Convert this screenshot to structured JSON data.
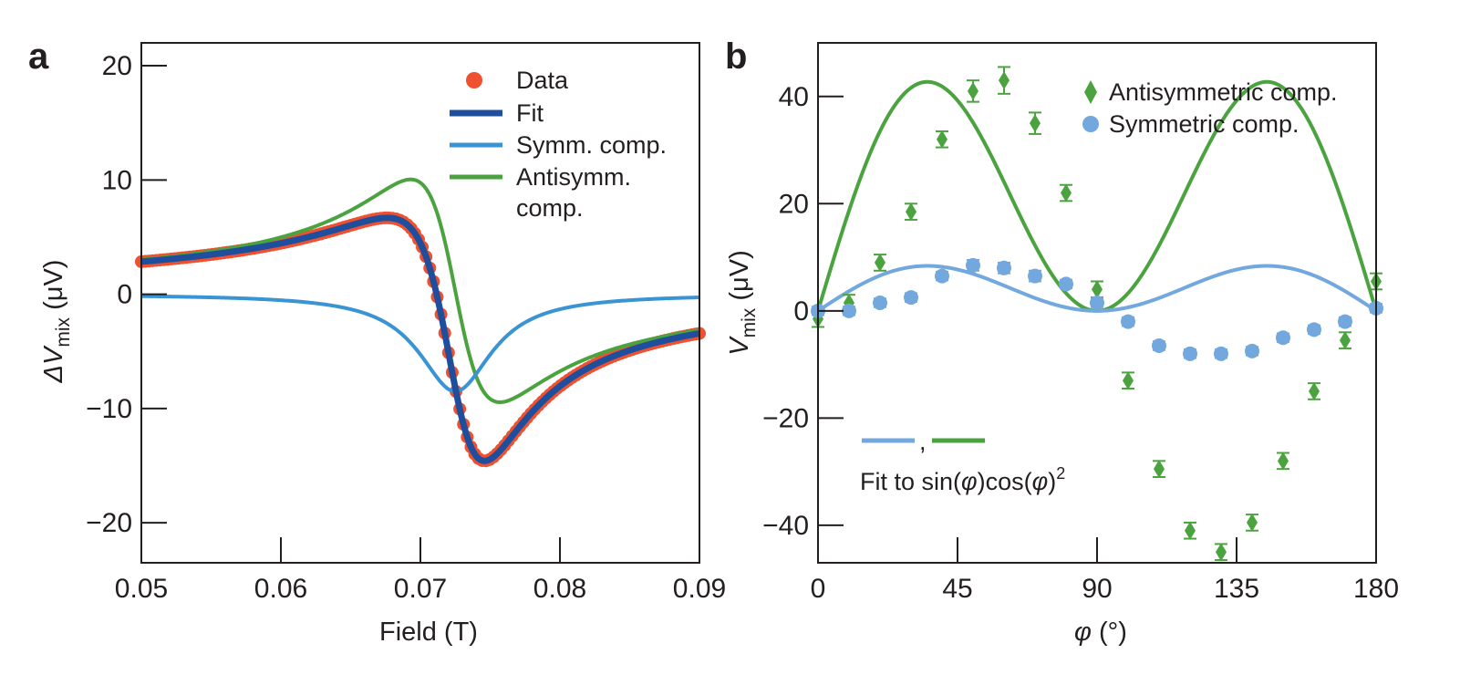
{
  "colors": {
    "data_red": "#ef5030",
    "fit_navy": "#1f4e9c",
    "symm_blue": "#3a93d2",
    "antisymm_green": "#4aa33e",
    "sym_light_blue": "#72a8de",
    "axis": "#231f20"
  },
  "chart_data": [
    {
      "type": "line",
      "panel_label": "a",
      "xlabel": "Field (T)",
      "ylabel_prefix": "ΔV",
      "ylabel_sub": "mix",
      "ylabel_unit": " (μV)",
      "xlim": [
        0.05,
        0.09
      ],
      "ylim": [
        -23.5,
        22
      ],
      "xticks": [
        0.05,
        0.06,
        0.07,
        0.08,
        0.09
      ],
      "xtick_labels": [
        "0.05",
        "0.06",
        "0.07",
        "0.08",
        "0.09"
      ],
      "yticks": [
        -20,
        -10,
        0,
        10,
        20
      ],
      "ytick_labels": [
        "−20",
        "−10",
        "0",
        "10",
        "20"
      ],
      "legend_placement": "top-right",
      "legend": [
        "Data",
        "Fit",
        "Symm. comp.",
        "Antisymm.",
        "comp."
      ],
      "model": {
        "H0": 0.0725,
        "width": 0.0032,
        "sym_amp": -8.5,
        "anti_amp": -19.5,
        "offset": 0.3,
        "curvature": 11.0
      },
      "series": [
        {
          "name": "Data",
          "style": "markers",
          "x_range": [
            0.05,
            0.09
          ],
          "points": 150
        },
        {
          "name": "Fit",
          "style": "line",
          "x_range": [
            0.05,
            0.09
          ]
        },
        {
          "name": "Symm. comp.",
          "style": "line",
          "x_range": [
            0.05,
            0.09
          ]
        },
        {
          "name": "Antisymm. comp.",
          "style": "line",
          "x_range": [
            0.05,
            0.09
          ]
        }
      ]
    },
    {
      "type": "scatter",
      "panel_label": "b",
      "xlabel_symbol": "φ",
      "xlabel_unit": " (°)",
      "ylabel_prefix": "V",
      "ylabel_sub": "mix",
      "ylabel_unit": " (μV)",
      "xlim": [
        0,
        180
      ],
      "ylim": [
        -47,
        50
      ],
      "xticks": [
        0,
        45,
        90,
        135,
        180
      ],
      "xtick_labels": [
        "0",
        "45",
        "90",
        "135",
        "180"
      ],
      "yticks": [
        -40,
        -20,
        0,
        20,
        40
      ],
      "ytick_labels": [
        "−40",
        "−20",
        "0",
        "20",
        "40"
      ],
      "legend_placement": "top-right",
      "legend": [
        "Antisymmetric comp.",
        "Symmetric comp."
      ],
      "fit_annotation": {
        "comma": ",",
        "prefix": "Fit to sin(",
        "phi": "φ",
        "mid": ")cos(",
        "suffix": ")",
        "power": "2"
      },
      "fit_amplitudes": {
        "antisymmetric": 111.0,
        "symmetric": 21.8
      },
      "series": [
        {
          "name": "Antisymmetric comp.",
          "x": [
            0,
            10,
            20,
            30,
            40,
            50,
            60,
            70,
            80,
            90,
            100,
            110,
            120,
            130,
            140,
            150,
            160,
            170,
            180
          ],
          "y": [
            -1.5,
            1.5,
            9,
            18.5,
            32,
            41,
            43,
            35,
            22,
            4,
            -13,
            -29.5,
            -41,
            -45,
            -39.5,
            -28,
            -15,
            -5.5,
            5.5
          ],
          "err": [
            1.5,
            1.5,
            1.5,
            1.5,
            1.5,
            2.0,
            2.5,
            2.0,
            1.5,
            1.5,
            1.5,
            1.5,
            1.5,
            1.5,
            1.5,
            1.5,
            1.5,
            1.5,
            1.5
          ]
        },
        {
          "name": "Symmetric comp.",
          "x": [
            0,
            10,
            20,
            30,
            40,
            50,
            60,
            70,
            80,
            90,
            100,
            110,
            120,
            130,
            140,
            150,
            160,
            170,
            180
          ],
          "y": [
            0,
            0,
            1.5,
            2.5,
            6.5,
            8.5,
            8,
            6.5,
            5,
            1.5,
            -2,
            -6.5,
            -8,
            -8,
            -7.5,
            -5,
            -3.5,
            -2,
            0.5
          ],
          "err": [
            0.8,
            0.8,
            0.8,
            0.8,
            0.8,
            1.0,
            1.0,
            1.0,
            0.8,
            0.8,
            0.8,
            0.8,
            0.8,
            0.8,
            0.8,
            0.8,
            0.8,
            0.8,
            0.8
          ]
        }
      ]
    }
  ]
}
